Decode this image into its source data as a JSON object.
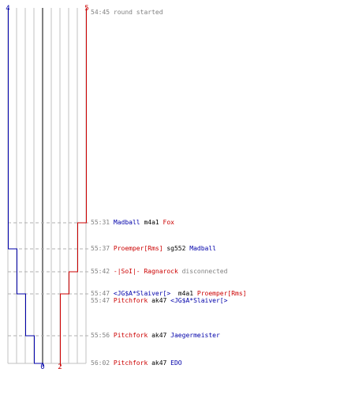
{
  "colors": {
    "blue": "#0000aa",
    "red": "#cc0000",
    "grid": "#c0c0c0",
    "center": "#808080",
    "dash": "#b0b0b0",
    "time": "#808080",
    "text": "#000000"
  },
  "score": {
    "blue_top": "4",
    "red_top": "5",
    "blue_bottom": "0",
    "red_bottom": "2"
  },
  "events": [
    {
      "time": "54:45",
      "parts": [
        {
          "text": "round started",
          "team": "muted"
        }
      ]
    },
    {
      "time": "55:31",
      "parts": [
        {
          "text": "Madball",
          "team": "blue"
        },
        {
          "text": " m4a1 ",
          "team": "plain"
        },
        {
          "text": "Fox",
          "team": "red"
        }
      ]
    },
    {
      "time": "55:37",
      "parts": [
        {
          "text": "Proemper[Rms]",
          "team": "red"
        },
        {
          "text": " sg552 ",
          "team": "plain"
        },
        {
          "text": "Madball",
          "team": "blue"
        }
      ]
    },
    {
      "time": "55:42",
      "parts": [
        {
          "text": "-|SoI|- Ragnarock",
          "team": "red"
        },
        {
          "text": " disconnected",
          "team": "muted"
        }
      ]
    },
    {
      "time": "55:47",
      "parts": [
        {
          "text": "<JG$A*Slaiver[>",
          "team": "blue"
        },
        {
          "text": "  m4a1 ",
          "team": "plain"
        },
        {
          "text": "Proemper[Rms]",
          "team": "red"
        }
      ]
    },
    {
      "time": "55:47",
      "parts": [
        {
          "text": "Pitchfork",
          "team": "red"
        },
        {
          "text": " ak47 ",
          "team": "plain"
        },
        {
          "text": "<JG$A*Slaiver[>",
          "team": "blue"
        }
      ]
    },
    {
      "time": "55:56",
      "parts": [
        {
          "text": "Pitchfork",
          "team": "red"
        },
        {
          "text": " ak47 ",
          "team": "plain"
        },
        {
          "text": "Jaegermeister",
          "team": "blue"
        }
      ]
    },
    {
      "time": "56:02",
      "parts": [
        {
          "text": "Pitchfork",
          "team": "red"
        },
        {
          "text": " ak47 ",
          "team": "plain"
        },
        {
          "text": "EDO",
          "team": "blue"
        }
      ]
    }
  ]
}
